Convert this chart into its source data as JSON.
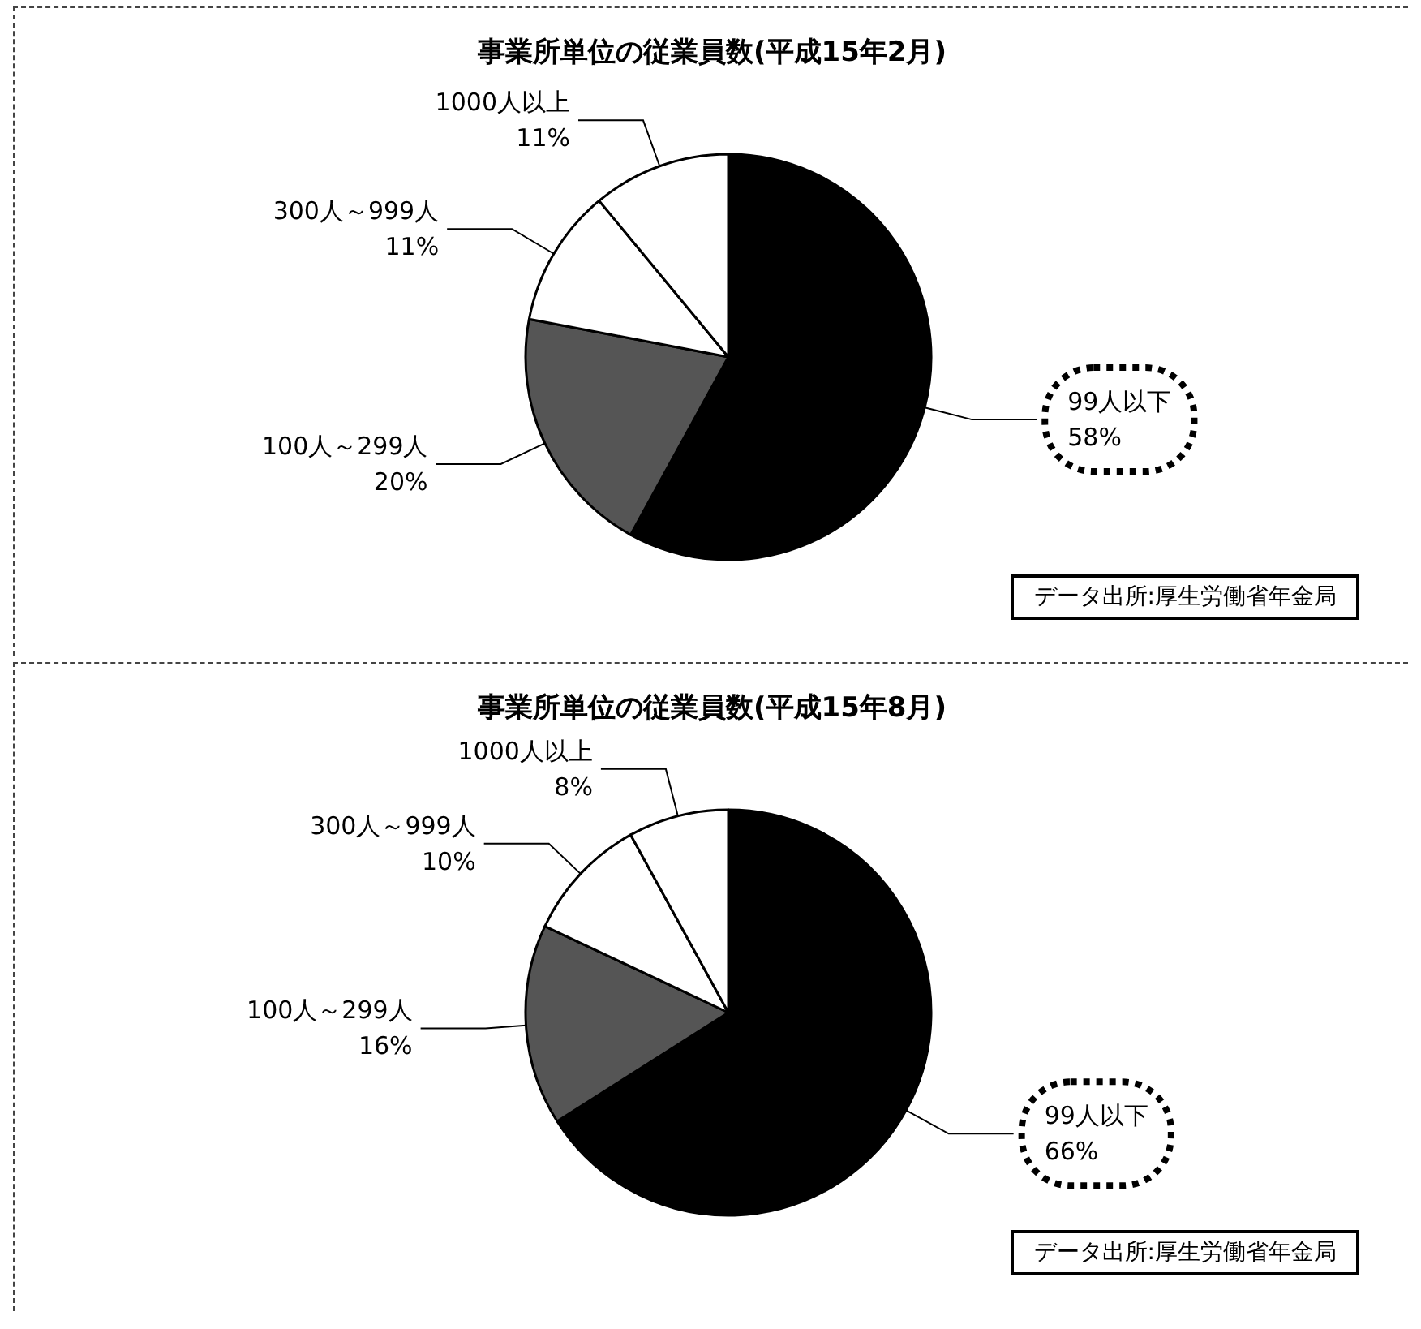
{
  "chart_data": [
    {
      "type": "pie",
      "title": "事業所単位の従業員数(平成15年2月)",
      "categories": [
        "99人以下",
        "100人～299人",
        "300人～999人",
        "1000人以上"
      ],
      "values": [
        58,
        20,
        11,
        11
      ],
      "value_labels": [
        "58%",
        "20%",
        "11%",
        "11%"
      ],
      "colors": [
        "#000000",
        "#555555",
        "#ffffff",
        "#ffffff"
      ],
      "annotations": [
        "データ出所:厚生労働省年金局"
      ]
    },
    {
      "type": "pie",
      "title": "事業所単位の従業員数(平成15年8月)",
      "categories": [
        "99人以下",
        "100人～299人",
        "300人～999人",
        "1000人以上"
      ],
      "values": [
        66,
        16,
        10,
        8
      ],
      "value_labels": [
        "66%",
        "16%",
        "10%",
        "8%"
      ],
      "colors": [
        "#000000",
        "#555555",
        "#ffffff",
        "#ffffff"
      ],
      "annotations": [
        "データ出所:厚生労働省年金局"
      ]
    }
  ]
}
